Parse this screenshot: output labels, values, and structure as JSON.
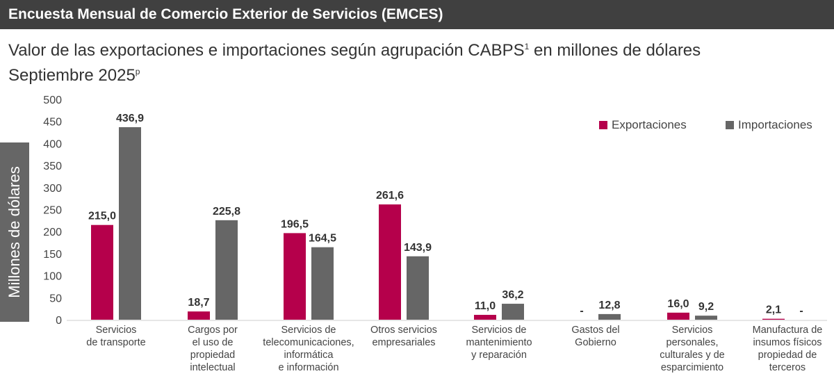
{
  "header": {
    "title": "Encuesta Mensual de Comercio Exterior de Servicios (EMCES)"
  },
  "subtitle": {
    "line1": "Valor de las exportaciones e importaciones según agrupación CABPS",
    "line1_sup": "1",
    "line1_tail": " en millones de dólares",
    "line2": "Septiembre 2025",
    "line2_sup": "p"
  },
  "colors": {
    "exportaciones": "#b5004b",
    "importaciones": "#666666",
    "header_bg": "#404040"
  },
  "chart_data": {
    "type": "bar",
    "ylabel": "Millones de dólares",
    "ylim": [
      0,
      500
    ],
    "yticks": [
      "0",
      "50",
      "100",
      "150",
      "200",
      "250",
      "300",
      "350",
      "400",
      "450",
      "500"
    ],
    "legend_position": "top-right",
    "categories": [
      "Servicios\nde transporte",
      "Cargos por\nel uso de\npropiedad\nintelectual",
      "Servicios de\ntelecomunicaciones,\ninformática\ne información",
      "Otros servicios\nempresariales",
      "Servicios de\nmantenimiento\ny reparación",
      "Gastos del\nGobierno",
      "Servicios\npersonales,\nculturales y de\nesparcimiento",
      "Manufactura de\ninsumos físicos\npropiedad de\nterceros"
    ],
    "series": [
      {
        "name": "Exportaciones",
        "values": [
          215.0,
          18.7,
          196.5,
          261.6,
          11.0,
          null,
          16.0,
          2.1
        ],
        "labels": [
          "215,0",
          "18,7",
          "196,5",
          "261,6",
          "11,0",
          "-",
          "16,0",
          "2,1"
        ]
      },
      {
        "name": "Importaciones",
        "values": [
          436.9,
          225.8,
          164.5,
          143.9,
          36.2,
          12.8,
          9.2,
          null
        ],
        "labels": [
          "436,9",
          "225,8",
          "164,5",
          "143,9",
          "36,2",
          "12,8",
          "9,2",
          "-"
        ]
      }
    ]
  }
}
